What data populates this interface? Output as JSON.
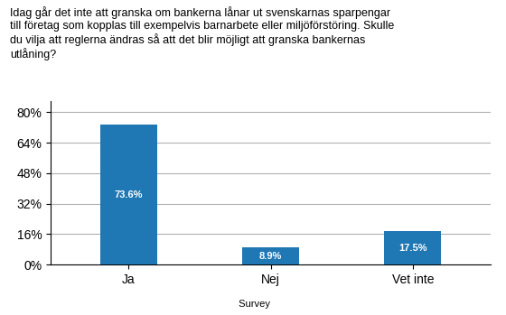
{
  "chart_data": {
    "type": "bar",
    "title": "Idag går det inte att granska om bankerna lånar ut svenskarnas sparpengar\ntill företag som kopplas till exempelvis barnarbete eller miljöförstöring. Skulle\ndu vilja att reglerna ändras så att det blir möjligt att granska bankernas\nutlåning?",
    "categories": [
      "Ja",
      "Nej",
      "Vet inte"
    ],
    "values": [
      73.6,
      8.9,
      17.5
    ],
    "value_labels": [
      "73.6%",
      "8.9%",
      "17.5%"
    ],
    "data_labels": true,
    "ylim": [
      0,
      86
    ],
    "yticks": [
      {
        "value": 0,
        "label": "0%"
      },
      {
        "value": 16,
        "label": "16%"
      },
      {
        "value": 32,
        "label": "32%"
      },
      {
        "value": 48,
        "label": "48%"
      },
      {
        "value": 64,
        "label": "64%"
      },
      {
        "value": 80,
        "label": "80%"
      }
    ],
    "grid": true,
    "annotations": [
      " Survey"
    ]
  }
}
